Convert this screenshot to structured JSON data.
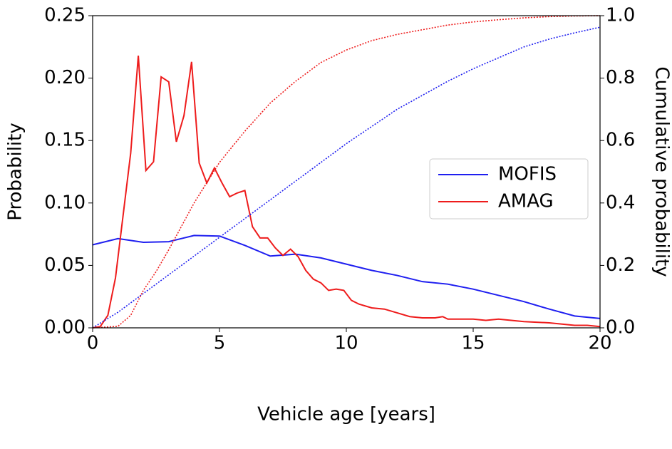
{
  "chart_data": {
    "type": "line",
    "xlabel": "Vehicle age [years]",
    "ylabel": "Probability",
    "y2label": "Cumulative probability",
    "xlim": [
      0,
      20
    ],
    "xticks": [
      0,
      5,
      10,
      15,
      20
    ],
    "ylim": [
      0,
      0.25
    ],
    "yticks": [
      {
        "value": 0,
        "label": "0.00"
      },
      {
        "value": 0.05,
        "label": "0.05"
      },
      {
        "value": 0.1,
        "label": "0.10"
      },
      {
        "value": 0.15,
        "label": "0.15"
      },
      {
        "value": 0.2,
        "label": "0.20"
      },
      {
        "value": 0.25,
        "label": "0.25"
      }
    ],
    "y2lim": [
      0,
      1
    ],
    "y2ticks": [
      {
        "value": 0,
        "label": "0.0"
      },
      {
        "value": 0.2,
        "label": "0.2"
      },
      {
        "value": 0.4,
        "label": "0.4"
      },
      {
        "value": 0.6,
        "label": "0.6"
      },
      {
        "value": 0.8,
        "label": "0.8"
      },
      {
        "value": 1,
        "label": "1.0"
      }
    ],
    "legend": "center right",
    "series": [
      {
        "name": "MOFIS",
        "color": "#1f1ff0",
        "linestyle": "solid",
        "x": [
          0,
          1,
          2,
          3,
          4,
          5,
          6,
          7,
          8,
          9,
          10,
          11,
          12,
          13,
          14,
          15,
          16,
          17,
          18,
          19,
          20
        ],
        "values": [
          0.0665,
          0.0715,
          0.0685,
          0.069,
          0.074,
          0.0735,
          0.066,
          0.0575,
          0.059,
          0.056,
          0.051,
          0.046,
          0.042,
          0.037,
          0.035,
          0.031,
          0.026,
          0.021,
          0.015,
          0.0095,
          0.0075
        ]
      },
      {
        "name": "AMAG",
        "color": "#ee1c1c",
        "linestyle": "solid",
        "x": [
          0,
          0.3,
          0.6,
          0.9,
          1.2,
          1.5,
          1.8,
          2.1,
          2.4,
          2.7,
          3.0,
          3.3,
          3.6,
          3.9,
          4.2,
          4.5,
          4.8,
          5.1,
          5.4,
          5.7,
          6.0,
          6.3,
          6.6,
          6.9,
          7.2,
          7.5,
          7.8,
          8.1,
          8.4,
          8.7,
          9.0,
          9.3,
          9.6,
          9.9,
          10.2,
          10.5,
          11,
          11.5,
          12,
          12.5,
          13,
          13.5,
          13.8,
          14,
          15,
          15.5,
          16,
          17,
          18,
          19,
          19.5,
          20
        ],
        "values": [
          0,
          0.001,
          0.01,
          0.04,
          0.09,
          0.14,
          0.218,
          0.126,
          0.133,
          0.201,
          0.197,
          0.149,
          0.17,
          0.213,
          0.132,
          0.116,
          0.128,
          0.116,
          0.105,
          0.108,
          0.11,
          0.081,
          0.072,
          0.072,
          0.064,
          0.058,
          0.063,
          0.057,
          0.046,
          0.039,
          0.036,
          0.03,
          0.031,
          0.03,
          0.022,
          0.019,
          0.016,
          0.015,
          0.012,
          0.009,
          0.008,
          0.008,
          0.009,
          0.007,
          0.007,
          0.006,
          0.007,
          0.005,
          0.004,
          0.002,
          0.002,
          0.001
        ]
      },
      {
        "color": "#1f1ff0",
        "linestyle": "dotted",
        "axis": "y2",
        "x": [
          0,
          1,
          2,
          3,
          4,
          5,
          6,
          7,
          8,
          9,
          10,
          11,
          12,
          13,
          14,
          15,
          16,
          17,
          18,
          19,
          20
        ],
        "values": [
          0,
          0.05,
          0.11,
          0.17,
          0.23,
          0.29,
          0.35,
          0.41,
          0.47,
          0.53,
          0.59,
          0.645,
          0.7,
          0.745,
          0.79,
          0.83,
          0.865,
          0.9,
          0.925,
          0.945,
          0.963
        ]
      },
      {
        "color": "#ee1c1c",
        "linestyle": "dotted",
        "axis": "y2",
        "x": [
          0,
          1,
          1.5,
          2,
          2.5,
          3,
          4,
          5,
          6,
          7,
          8,
          9,
          10,
          11,
          12,
          13,
          14,
          15,
          16,
          17,
          18,
          19,
          20
        ],
        "values": [
          0,
          0.005,
          0.04,
          0.12,
          0.18,
          0.25,
          0.4,
          0.53,
          0.63,
          0.72,
          0.79,
          0.85,
          0.89,
          0.92,
          0.94,
          0.955,
          0.97,
          0.98,
          0.987,
          0.993,
          0.997,
          0.999,
          1.0
        ]
      }
    ]
  }
}
